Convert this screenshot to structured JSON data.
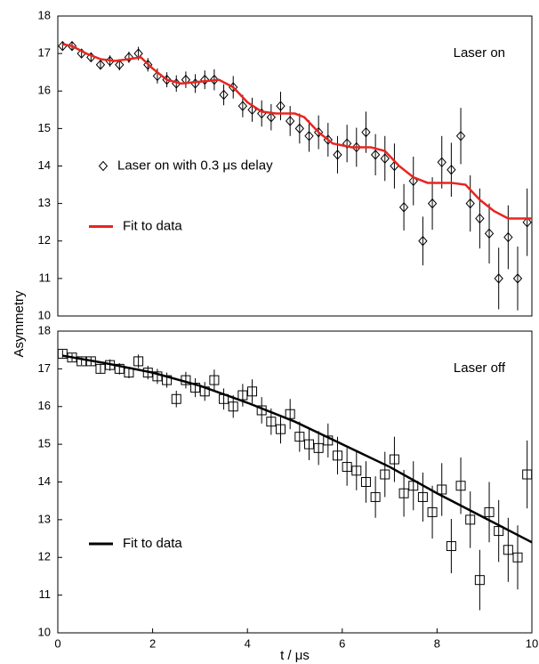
{
  "chart_data": [
    {
      "type": "scatter",
      "annotation": "Laser on",
      "ylabel": "Asymmetry",
      "legend": "center-left",
      "xlim": [
        0,
        10
      ],
      "ylim": [
        10,
        18
      ],
      "yticks": [
        10,
        11,
        12,
        13,
        14,
        15,
        16,
        17,
        18
      ],
      "series": [
        {
          "name": "Laser on with 0.3 μs delay",
          "kind": "points",
          "marker": "diamond",
          "color": "#000000",
          "x": [
            0.1,
            0.3,
            0.5,
            0.7,
            0.9,
            1.1,
            1.3,
            1.5,
            1.7,
            1.9,
            2.1,
            2.3,
            2.5,
            2.7,
            2.9,
            3.1,
            3.3,
            3.5,
            3.7,
            3.9,
            4.1,
            4.3,
            4.5,
            4.7,
            4.9,
            5.1,
            5.3,
            5.5,
            5.7,
            5.9,
            6.1,
            6.3,
            6.5,
            6.7,
            6.9,
            7.1,
            7.3,
            7.5,
            7.7,
            7.9,
            8.1,
            8.3,
            8.5,
            8.7,
            8.9,
            9.1,
            9.3,
            9.5,
            9.7,
            9.9
          ],
          "values": [
            17.2,
            17.2,
            17.0,
            16.9,
            16.7,
            16.8,
            16.7,
            16.9,
            17.0,
            16.7,
            16.4,
            16.3,
            16.2,
            16.3,
            16.2,
            16.3,
            16.3,
            15.9,
            16.1,
            15.6,
            15.5,
            15.4,
            15.3,
            15.6,
            15.2,
            15.0,
            14.8,
            14.9,
            14.7,
            14.3,
            14.6,
            14.5,
            14.9,
            14.3,
            14.2,
            14.0,
            12.9,
            13.6,
            12.0,
            13.0,
            14.1,
            13.9,
            14.8,
            13.0,
            12.6,
            12.2,
            11.0,
            12.1,
            11.0,
            12.5
          ],
          "errors": [
            0.1,
            0.1,
            0.1,
            0.12,
            0.12,
            0.15,
            0.15,
            0.15,
            0.18,
            0.18,
            0.2,
            0.2,
            0.22,
            0.22,
            0.25,
            0.25,
            0.28,
            0.28,
            0.3,
            0.3,
            0.32,
            0.35,
            0.35,
            0.38,
            0.4,
            0.4,
            0.42,
            0.45,
            0.45,
            0.5,
            0.5,
            0.52,
            0.55,
            0.55,
            0.6,
            0.6,
            0.62,
            0.65,
            0.65,
            0.7,
            0.7,
            0.72,
            0.75,
            0.75,
            0.8,
            0.8,
            0.82,
            0.85,
            0.85,
            0.9
          ]
        },
        {
          "name": "Fit to data",
          "kind": "line",
          "color": "#e8251f",
          "x": [
            0.1,
            0.3,
            0.6,
            0.9,
            1.2,
            1.5,
            1.75,
            2.0,
            2.3,
            2.6,
            3.0,
            3.4,
            3.7,
            4.0,
            4.3,
            4.6,
            5.0,
            5.2,
            5.5,
            5.8,
            6.2,
            6.6,
            6.9,
            7.2,
            7.5,
            7.8,
            8.3,
            8.6,
            8.9,
            9.2,
            9.5,
            10
          ],
          "values": [
            17.25,
            17.2,
            17.0,
            16.85,
            16.8,
            16.85,
            16.9,
            16.6,
            16.3,
            16.2,
            16.25,
            16.3,
            16.1,
            15.7,
            15.45,
            15.4,
            15.4,
            15.3,
            14.9,
            14.6,
            14.5,
            14.5,
            14.4,
            14.0,
            13.7,
            13.55,
            13.55,
            13.5,
            13.1,
            12.8,
            12.6,
            12.6
          ]
        }
      ]
    },
    {
      "type": "scatter",
      "annotation": "Laser off",
      "xlabel": "t / μs",
      "legend": "lower-left",
      "xlim": [
        0,
        10
      ],
      "xticks": [
        0,
        2,
        4,
        6,
        8,
        10
      ],
      "ylim": [
        10,
        18
      ],
      "yticks": [
        10,
        11,
        12,
        13,
        14,
        15,
        16,
        17,
        18
      ],
      "series": [
        {
          "kind": "points",
          "marker": "square",
          "color": "#000000",
          "x": [
            0.1,
            0.3,
            0.5,
            0.7,
            0.9,
            1.1,
            1.3,
            1.5,
            1.7,
            1.9,
            2.1,
            2.3,
            2.5,
            2.7,
            2.9,
            3.1,
            3.3,
            3.5,
            3.7,
            3.9,
            4.1,
            4.3,
            4.5,
            4.7,
            4.9,
            5.1,
            5.3,
            5.5,
            5.7,
            5.9,
            6.1,
            6.3,
            6.5,
            6.7,
            6.9,
            7.1,
            7.3,
            7.5,
            7.7,
            7.9,
            8.1,
            8.3,
            8.5,
            8.7,
            8.9,
            9.1,
            9.3,
            9.5,
            9.7,
            9.9
          ],
          "values": [
            17.4,
            17.3,
            17.2,
            17.2,
            17.0,
            17.1,
            17.0,
            16.9,
            17.2,
            16.9,
            16.8,
            16.7,
            16.2,
            16.7,
            16.5,
            16.4,
            16.7,
            16.2,
            16.0,
            16.3,
            16.4,
            15.9,
            15.6,
            15.4,
            15.8,
            15.2,
            15.0,
            14.9,
            15.1,
            14.7,
            14.4,
            14.3,
            14.0,
            13.6,
            14.2,
            14.6,
            13.7,
            13.9,
            13.6,
            13.2,
            13.8,
            12.3,
            13.9,
            13.0,
            11.4,
            13.2,
            12.7,
            12.2,
            12.0,
            14.2
          ],
          "errors": [
            0.1,
            0.1,
            0.1,
            0.12,
            0.12,
            0.15,
            0.15,
            0.15,
            0.18,
            0.18,
            0.2,
            0.2,
            0.22,
            0.22,
            0.25,
            0.25,
            0.28,
            0.28,
            0.3,
            0.3,
            0.32,
            0.35,
            0.35,
            0.38,
            0.4,
            0.4,
            0.42,
            0.45,
            0.45,
            0.5,
            0.5,
            0.52,
            0.55,
            0.55,
            0.6,
            0.6,
            0.62,
            0.65,
            0.65,
            0.7,
            0.7,
            0.72,
            0.75,
            0.75,
            0.8,
            0.8,
            0.82,
            0.85,
            0.85,
            0.9
          ]
        },
        {
          "name": "Fit to data",
          "kind": "line",
          "color": "#000000",
          "x": [
            0.1,
            1,
            2,
            3,
            4,
            5,
            6,
            7,
            8,
            9,
            10
          ],
          "values": [
            17.35,
            17.15,
            16.9,
            16.55,
            16.1,
            15.6,
            15.0,
            14.4,
            13.7,
            13.05,
            12.4
          ]
        }
      ]
    }
  ]
}
